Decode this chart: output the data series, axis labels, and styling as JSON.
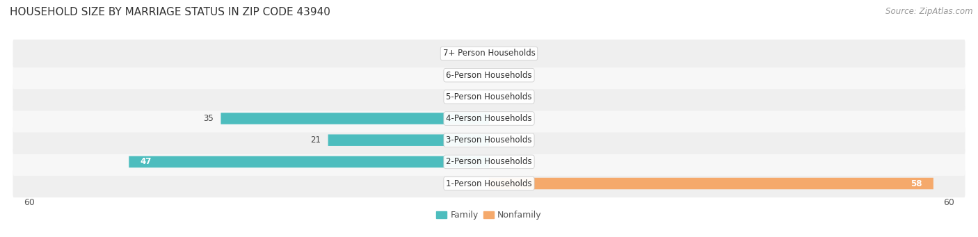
{
  "title": "HOUSEHOLD SIZE BY MARRIAGE STATUS IN ZIP CODE 43940",
  "source": "Source: ZipAtlas.com",
  "categories": [
    "7+ Person Households",
    "6-Person Households",
    "5-Person Households",
    "4-Person Households",
    "3-Person Households",
    "2-Person Households",
    "1-Person Households"
  ],
  "family_values": [
    0,
    0,
    0,
    35,
    21,
    47,
    0
  ],
  "nonfamily_values": [
    0,
    0,
    0,
    0,
    0,
    0,
    58
  ],
  "family_color": "#4DBDBE",
  "nonfamily_color": "#F5A96B",
  "xlim": 60,
  "bar_height": 0.52,
  "title_fontsize": 11,
  "label_fontsize": 8.5,
  "tick_fontsize": 9,
  "source_fontsize": 8.5,
  "category_label_fontsize": 8.5
}
